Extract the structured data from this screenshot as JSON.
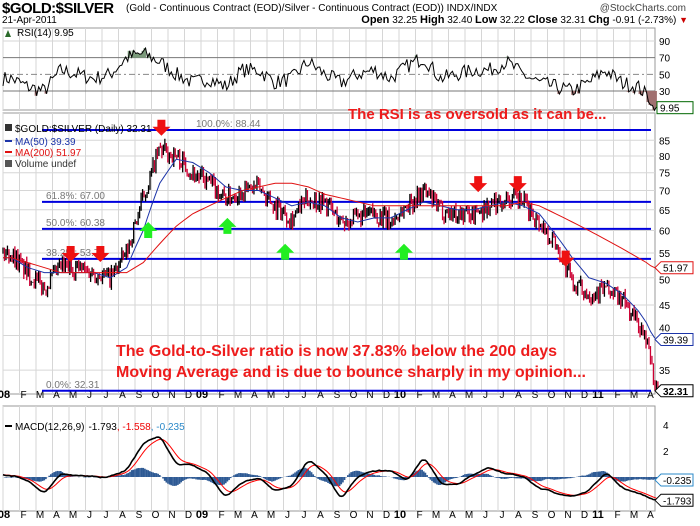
{
  "header": {
    "symbol": "$GOLD:$SILVER",
    "description": "(Gold - Continuous Contract (EOD)/Silver - Continuous Contract (EOD))",
    "exchange": "INDX/INDX",
    "brand": "@StockCharts.com",
    "date": "21-Apr-2011",
    "open_label": "Open",
    "open": "32.25",
    "high_label": "High",
    "high": "32.40",
    "low_label": "Low",
    "low": "32.22",
    "close_label": "Close",
    "close": "32.31",
    "chg_label": "Chg",
    "chg": "-0.91 (-2.73%)",
    "chg_icon": "triangle-down"
  },
  "chart_data": {
    "type": "line",
    "x_unit": "months since Jan 2008",
    "x_ticks": [
      "08",
      "F",
      "M",
      "A",
      "M",
      "J",
      "J",
      "A",
      "S",
      "O",
      "N",
      "D",
      "09",
      "F",
      "M",
      "A",
      "M",
      "J",
      "J",
      "A",
      "S",
      "O",
      "N",
      "D",
      "10",
      "F",
      "M",
      "A",
      "M",
      "J",
      "J",
      "A",
      "S",
      "O",
      "N",
      "D",
      "11",
      "F",
      "M",
      "A"
    ],
    "rsi": {
      "legend": "RSI(14) 9.95",
      "last": "9.95",
      "ticks": [
        "90",
        "70",
        "50",
        "30"
      ],
      "levels": [
        70,
        50,
        30
      ],
      "monthly": [
        45,
        35,
        30,
        55,
        50,
        45,
        50,
        70,
        75,
        65,
        50,
        40,
        45,
        35,
        55,
        55,
        40,
        45,
        65,
        50,
        40,
        50,
        55,
        45,
        60,
        70,
        45,
        50,
        55,
        55,
        65,
        50,
        40,
        35,
        30,
        40,
        55,
        40,
        35,
        15
      ],
      "annotation": "The RSI is as oversold as it can be..."
    },
    "price": {
      "legend": "$GOLD:$SILVER (Daily) 32.31",
      "ma50_legend": "MA(50) 39.39",
      "ma200_legend": "MA(200) 51.97",
      "volume_legend": "Volume undef",
      "ylim": [
        32.31,
        88.44
      ],
      "scale": "log",
      "ticks": [
        "35",
        "40",
        "45",
        "50",
        "55",
        "60",
        "65",
        "70",
        "75",
        "80",
        "85"
      ],
      "last_close": "32.31",
      "ma50_last": "39.39",
      "ma200_last": "51.97",
      "monthly": [
        55,
        51,
        48,
        52,
        52,
        51,
        50,
        55,
        68,
        82,
        80,
        75,
        72,
        68,
        70,
        71,
        66,
        63,
        68,
        67,
        62,
        63,
        64,
        62,
        66,
        70,
        65,
        64,
        64,
        66,
        68,
        67,
        62,
        57,
        49,
        47,
        48,
        46,
        42,
        35
      ],
      "ma50": [
        54,
        52,
        51,
        51,
        51,
        51,
        50,
        52,
        60,
        72,
        79,
        78,
        75,
        71,
        70,
        70,
        68,
        66,
        67,
        66,
        63,
        62,
        63,
        63,
        65,
        67,
        66,
        65,
        65,
        66,
        67,
        66,
        64,
        59,
        54,
        50,
        49,
        47,
        44,
        40
      ],
      "ma200": [
        54,
        53,
        52,
        51,
        51,
        51,
        51,
        51,
        53,
        57,
        61,
        64,
        66,
        68,
        70,
        71,
        72,
        72,
        71,
        69,
        68,
        67,
        66,
        66,
        66,
        66,
        66,
        66,
        66,
        66,
        66,
        67,
        66,
        64,
        62,
        60,
        58,
        56,
        54,
        52
      ],
      "fib": [
        {
          "label": "100.0%: 88.44",
          "value": 88.44
        },
        {
          "label": "61.8%: 67.00",
          "value": 67.0
        },
        {
          "label": "50.0%: 60.38",
          "value": 60.38
        },
        {
          "label": "38.2%: 53.76",
          "value": 53.76
        },
        {
          "label": "0.0%: 32.31",
          "value": 32.31
        }
      ],
      "arrows": [
        {
          "dir": "down",
          "month": 4.1,
          "value": 56.5
        },
        {
          "dir": "down",
          "month": 5.9,
          "value": 56.5
        },
        {
          "dir": "down",
          "month": 9.6,
          "value": 92
        },
        {
          "dir": "down",
          "month": 28.8,
          "value": 74
        },
        {
          "dir": "down",
          "month": 31.2,
          "value": 74
        },
        {
          "dir": "down",
          "month": 34.1,
          "value": 55.5
        },
        {
          "dir": "up",
          "month": 8.8,
          "value": 62
        },
        {
          "dir": "up",
          "month": 13.6,
          "value": 63
        },
        {
          "dir": "up",
          "month": 17.1,
          "value": 57
        },
        {
          "dir": "up",
          "month": 24.3,
          "value": 57
        }
      ],
      "annotation_lines": [
        "The Gold-to-Silver ratio is now 37.83% below the 200 days",
        "Moving Average and is due to bounce sharply in my opinion..."
      ]
    },
    "macd": {
      "legend_name": "MACD(12,26,9)",
      "macd_value": "-1.793",
      "signal_value": ", -1.558",
      "hist_value": ", -0.235",
      "ticks": [
        "4",
        "2"
      ],
      "monthly": [
        0.1,
        -0.3,
        -1.3,
        0.3,
        0.1,
        0,
        0,
        0.5,
        2.6,
        3.2,
        1.0,
        0.9,
        0.2,
        -1.6,
        -0.4,
        0,
        -1.1,
        -0.7,
        1.3,
        0.3,
        -1.7,
        0,
        0.5,
        0.5,
        -0.3,
        1.6,
        -0.5,
        -0.6,
        0.2,
        0.7,
        0.2,
        0.1,
        -0.8,
        -1.2,
        -1.5,
        -1.1,
        0.4,
        -0.8,
        -1.2,
        -1.8
      ]
    }
  },
  "colors": {
    "fib": "#0000dd",
    "ma50": "#1c34a8",
    "ma200": "#e01010",
    "up_bar": "#000000",
    "down_bar": "#cc0033",
    "annotation": "#ee1c1c",
    "hist": "#2e5a94",
    "signal": "#ff0000"
  }
}
